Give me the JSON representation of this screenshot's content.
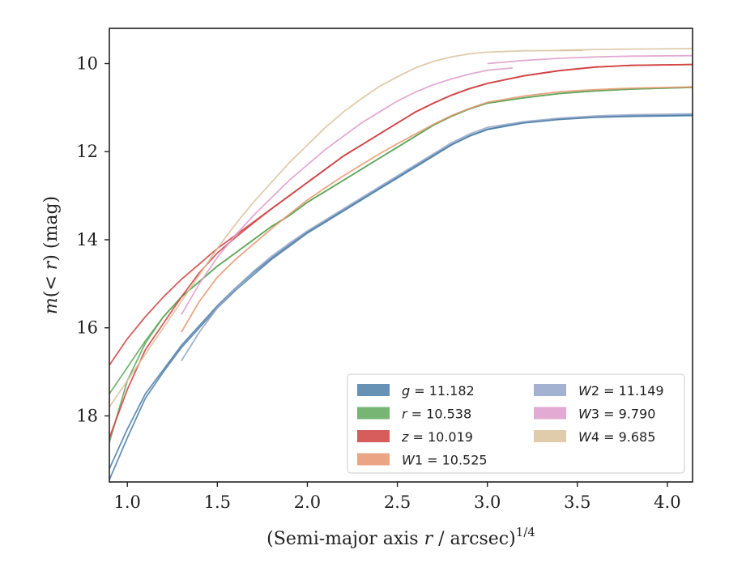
{
  "chart_data": {
    "type": "line",
    "title": "",
    "xlabel": "(Semi-major axis r / arcsec)^1/4",
    "xlabel_parts": {
      "pre": "(Semi-major axis ",
      "var": "r",
      "post": " / arcsec)",
      "sup": "1/4"
    },
    "ylabel": "m(< r) (mag)",
    "ylabel_parts": {
      "var": "m",
      "mid": "(< ",
      "var2": "r",
      "post": ") (mag)"
    },
    "xlim": [
      0.9,
      4.14
    ],
    "ylim": [
      19.5,
      9.2
    ],
    "y_inverted": true,
    "xticks": [
      1.0,
      1.5,
      2.0,
      2.5,
      3.0,
      3.5,
      4.0
    ],
    "xtick_labels": [
      "1.0",
      "1.5",
      "2.0",
      "2.5",
      "3.0",
      "3.5",
      "4.0"
    ],
    "yticks": [
      10,
      12,
      14,
      16,
      18
    ],
    "ytick_labels": [
      "10",
      "12",
      "14",
      "16",
      "18"
    ],
    "grid": false,
    "legend_position": "lower-right",
    "legend_columns": 2,
    "series": [
      {
        "name": "g = 11.182",
        "legend": {
          "var": "g",
          "value": "= 11.182"
        },
        "color": "#4c7ea8",
        "points": [
          [
            0.9,
            19.45
          ],
          [
            1.0,
            18.5
          ],
          [
            1.1,
            17.6
          ],
          [
            1.2,
            17.0
          ],
          [
            1.3,
            16.45
          ],
          [
            1.4,
            16.0
          ],
          [
            1.5,
            15.55
          ],
          [
            1.6,
            15.15
          ],
          [
            1.7,
            14.8
          ],
          [
            1.8,
            14.45
          ],
          [
            1.9,
            14.15
          ],
          [
            2.0,
            13.85
          ],
          [
            2.1,
            13.6
          ],
          [
            2.2,
            13.35
          ],
          [
            2.3,
            13.1
          ],
          [
            2.4,
            12.85
          ],
          [
            2.5,
            12.6
          ],
          [
            2.6,
            12.35
          ],
          [
            2.7,
            12.1
          ],
          [
            2.8,
            11.85
          ],
          [
            2.9,
            11.65
          ],
          [
            3.0,
            11.5
          ],
          [
            3.2,
            11.35
          ],
          [
            3.4,
            11.27
          ],
          [
            3.6,
            11.22
          ],
          [
            3.8,
            11.2
          ],
          [
            4.14,
            11.18
          ]
        ],
        "points2": [
          [
            0.9,
            19.2
          ],
          [
            1.0,
            18.3
          ],
          [
            1.1,
            17.5
          ],
          [
            1.2,
            16.95
          ],
          [
            1.3,
            16.4
          ],
          [
            1.4,
            15.95
          ],
          [
            1.5,
            15.5
          ],
          [
            1.6,
            15.1
          ],
          [
            1.7,
            14.75
          ],
          [
            1.8,
            14.42
          ],
          [
            1.9,
            14.12
          ],
          [
            2.0,
            13.83
          ],
          [
            2.1,
            13.58
          ],
          [
            2.2,
            13.33
          ],
          [
            2.3,
            13.08
          ],
          [
            2.4,
            12.83
          ],
          [
            2.5,
            12.58
          ],
          [
            2.6,
            12.33
          ],
          [
            2.7,
            12.08
          ],
          [
            2.8,
            11.84
          ],
          [
            2.9,
            11.64
          ],
          [
            3.0,
            11.49
          ],
          [
            3.2,
            11.34
          ],
          [
            3.4,
            11.26
          ],
          [
            3.6,
            11.21
          ],
          [
            3.8,
            11.19
          ],
          [
            4.14,
            11.17
          ]
        ]
      },
      {
        "name": "r = 10.538",
        "legend": {
          "var": "r",
          "value": "= 10.538"
        },
        "color": "#5ea85a",
        "points": [
          [
            0.9,
            18.6
          ],
          [
            1.0,
            17.2
          ],
          [
            1.1,
            16.35
          ],
          [
            1.2,
            15.75
          ],
          [
            1.3,
            15.3
          ],
          [
            1.4,
            14.95
          ],
          [
            1.5,
            14.6
          ],
          [
            1.6,
            14.3
          ],
          [
            1.7,
            14.0
          ],
          [
            1.8,
            13.7
          ],
          [
            1.9,
            13.45
          ],
          [
            2.0,
            13.15
          ],
          [
            2.1,
            12.9
          ],
          [
            2.2,
            12.65
          ],
          [
            2.3,
            12.4
          ],
          [
            2.4,
            12.15
          ],
          [
            2.5,
            11.9
          ],
          [
            2.6,
            11.65
          ],
          [
            2.7,
            11.4
          ],
          [
            2.8,
            11.2
          ],
          [
            2.9,
            11.03
          ],
          [
            3.0,
            10.9
          ],
          [
            3.2,
            10.78
          ],
          [
            3.4,
            10.68
          ],
          [
            3.6,
            10.62
          ],
          [
            3.8,
            10.58
          ],
          [
            4.14,
            10.54
          ]
        ],
        "points2": [
          [
            0.9,
            17.5
          ],
          [
            1.0,
            16.9
          ],
          [
            1.1,
            16.3
          ],
          [
            1.2,
            15.75
          ],
          [
            1.3,
            15.3
          ],
          [
            1.4,
            14.95
          ],
          [
            1.5,
            14.6
          ],
          [
            1.6,
            14.3
          ],
          [
            1.7,
            14.0
          ],
          [
            1.8,
            13.7
          ],
          [
            1.9,
            13.45
          ],
          [
            2.0,
            13.15
          ],
          [
            2.1,
            12.9
          ],
          [
            2.2,
            12.65
          ],
          [
            2.3,
            12.4
          ],
          [
            2.4,
            12.15
          ],
          [
            2.5,
            11.9
          ],
          [
            2.6,
            11.65
          ],
          [
            2.7,
            11.4
          ],
          [
            2.8,
            11.2
          ],
          [
            2.9,
            11.03
          ],
          [
            3.0,
            10.9
          ],
          [
            3.2,
            10.78
          ],
          [
            3.4,
            10.68
          ],
          [
            3.6,
            10.62
          ],
          [
            3.8,
            10.58
          ],
          [
            4.14,
            10.54
          ]
        ]
      },
      {
        "name": "z = 10.019",
        "legend": {
          "var": "z",
          "value": "= 10.019"
        },
        "color": "#d03f3f",
        "points": [
          [
            0.9,
            16.85
          ],
          [
            1.0,
            16.25
          ],
          [
            1.1,
            15.75
          ],
          [
            1.2,
            15.3
          ],
          [
            1.3,
            14.9
          ],
          [
            1.4,
            14.55
          ],
          [
            1.5,
            14.2
          ],
          [
            1.6,
            13.9
          ],
          [
            1.7,
            13.6
          ],
          [
            1.8,
            13.3
          ],
          [
            1.9,
            13.0
          ],
          [
            2.0,
            12.7
          ],
          [
            2.1,
            12.4
          ],
          [
            2.2,
            12.1
          ],
          [
            2.3,
            11.85
          ],
          [
            2.4,
            11.6
          ],
          [
            2.5,
            11.35
          ],
          [
            2.6,
            11.1
          ],
          [
            2.7,
            10.9
          ],
          [
            2.8,
            10.72
          ],
          [
            2.9,
            10.57
          ],
          [
            3.0,
            10.45
          ],
          [
            3.2,
            10.28
          ],
          [
            3.4,
            10.16
          ],
          [
            3.6,
            10.08
          ],
          [
            3.8,
            10.04
          ],
          [
            4.14,
            10.02
          ]
        ],
        "points2": [
          [
            0.9,
            18.5
          ],
          [
            1.0,
            17.4
          ],
          [
            1.1,
            16.5
          ],
          [
            1.2,
            15.9
          ],
          [
            1.3,
            15.3
          ],
          [
            1.4,
            14.75
          ],
          [
            1.5,
            14.3
          ],
          [
            1.6,
            13.95
          ],
          [
            1.7,
            13.62
          ],
          [
            1.8,
            13.3
          ],
          [
            1.9,
            13.0
          ],
          [
            2.0,
            12.7
          ],
          [
            2.1,
            12.4
          ],
          [
            2.2,
            12.1
          ],
          [
            2.3,
            11.85
          ],
          [
            2.4,
            11.6
          ],
          [
            2.5,
            11.35
          ],
          [
            2.6,
            11.1
          ],
          [
            2.7,
            10.9
          ],
          [
            2.8,
            10.72
          ],
          [
            2.9,
            10.57
          ],
          [
            3.0,
            10.45
          ],
          [
            3.2,
            10.28
          ],
          [
            3.4,
            10.16
          ],
          [
            3.6,
            10.08
          ],
          [
            3.8,
            10.04
          ],
          [
            4.14,
            10.02
          ]
        ]
      },
      {
        "name": "W1 = 10.525",
        "legend": {
          "var": "W",
          "sub": "1",
          "value": "= 10.525"
        },
        "color": "#e8956e",
        "points": [
          [
            1.3,
            16.1
          ],
          [
            1.4,
            15.4
          ],
          [
            1.5,
            14.85
          ],
          [
            1.6,
            14.45
          ],
          [
            1.7,
            14.1
          ],
          [
            1.8,
            13.75
          ],
          [
            1.9,
            13.42
          ],
          [
            2.0,
            13.1
          ],
          [
            2.1,
            12.82
          ],
          [
            2.2,
            12.55
          ],
          [
            2.3,
            12.3
          ],
          [
            2.4,
            12.05
          ],
          [
            2.5,
            11.82
          ],
          [
            2.6,
            11.6
          ],
          [
            2.7,
            11.38
          ],
          [
            2.8,
            11.18
          ],
          [
            2.9,
            11.02
          ],
          [
            3.0,
            10.88
          ],
          [
            3.2,
            10.74
          ],
          [
            3.4,
            10.64
          ],
          [
            3.6,
            10.59
          ],
          [
            3.8,
            10.56
          ],
          [
            4.14,
            10.53
          ]
        ]
      },
      {
        "name": "W2 = 11.149",
        "legend": {
          "var": "W",
          "sub": "2",
          "value": "= 11.149"
        },
        "color": "#93a4c8",
        "points": [
          [
            1.3,
            16.75
          ],
          [
            1.4,
            16.1
          ],
          [
            1.5,
            15.55
          ],
          [
            1.6,
            15.1
          ],
          [
            1.7,
            14.72
          ],
          [
            1.8,
            14.38
          ],
          [
            1.9,
            14.08
          ],
          [
            2.0,
            13.8
          ],
          [
            2.1,
            13.55
          ],
          [
            2.2,
            13.3
          ],
          [
            2.3,
            13.05
          ],
          [
            2.4,
            12.8
          ],
          [
            2.5,
            12.55
          ],
          [
            2.6,
            12.3
          ],
          [
            2.7,
            12.05
          ],
          [
            2.8,
            11.8
          ],
          [
            2.9,
            11.6
          ],
          [
            3.0,
            11.45
          ],
          [
            3.2,
            11.32
          ],
          [
            3.4,
            11.24
          ],
          [
            3.6,
            11.19
          ],
          [
            3.8,
            11.16
          ],
          [
            4.14,
            11.14
          ]
        ]
      },
      {
        "name": "W3 = 9.790",
        "legend": {
          "var": "W",
          "sub": "3",
          "value": "= 9.790"
        },
        "color": "#de9ccb",
        "points": [
          [
            1.3,
            15.7
          ],
          [
            1.4,
            15.0
          ],
          [
            1.5,
            14.4
          ],
          [
            1.6,
            13.9
          ],
          [
            1.7,
            13.45
          ],
          [
            1.8,
            13.05
          ],
          [
            1.9,
            12.65
          ],
          [
            2.0,
            12.3
          ],
          [
            2.1,
            11.95
          ],
          [
            2.2,
            11.65
          ],
          [
            2.3,
            11.35
          ],
          [
            2.4,
            11.1
          ],
          [
            2.5,
            10.85
          ],
          [
            2.6,
            10.65
          ],
          [
            2.7,
            10.48
          ],
          [
            2.8,
            10.35
          ],
          [
            2.9,
            10.24
          ],
          [
            3.0,
            10.15
          ],
          [
            3.14,
            10.1
          ]
        ],
        "points2": [
          [
            3.0,
            10.0
          ],
          [
            3.2,
            9.93
          ],
          [
            3.4,
            9.88
          ],
          [
            3.6,
            9.85
          ],
          [
            3.8,
            9.83
          ],
          [
            4.14,
            9.82
          ]
        ]
      },
      {
        "name": "W4 = 9.685",
        "legend": {
          "var": "W",
          "sub": "4",
          "value": "= 9.685"
        },
        "color": "#dbc29c",
        "points": [
          [
            0.9,
            17.8
          ],
          [
            1.0,
            17.2
          ],
          [
            1.1,
            16.6
          ],
          [
            1.2,
            16.0
          ],
          [
            1.3,
            15.4
          ],
          [
            1.4,
            14.8
          ],
          [
            1.5,
            14.2
          ],
          [
            1.6,
            13.65
          ],
          [
            1.7,
            13.15
          ],
          [
            1.8,
            12.7
          ],
          [
            1.9,
            12.25
          ],
          [
            2.0,
            11.85
          ],
          [
            2.1,
            11.45
          ],
          [
            2.2,
            11.1
          ],
          [
            2.3,
            10.8
          ],
          [
            2.4,
            10.52
          ],
          [
            2.5,
            10.3
          ],
          [
            2.6,
            10.1
          ],
          [
            2.7,
            9.95
          ],
          [
            2.8,
            9.85
          ],
          [
            2.9,
            9.78
          ],
          [
            3.0,
            9.74
          ],
          [
            3.2,
            9.71
          ],
          [
            3.53,
            9.7
          ]
        ],
        "points2": [
          [
            3.4,
            9.7
          ],
          [
            3.6,
            9.68
          ],
          [
            3.8,
            9.67
          ],
          [
            4.14,
            9.66
          ]
        ]
      }
    ]
  }
}
